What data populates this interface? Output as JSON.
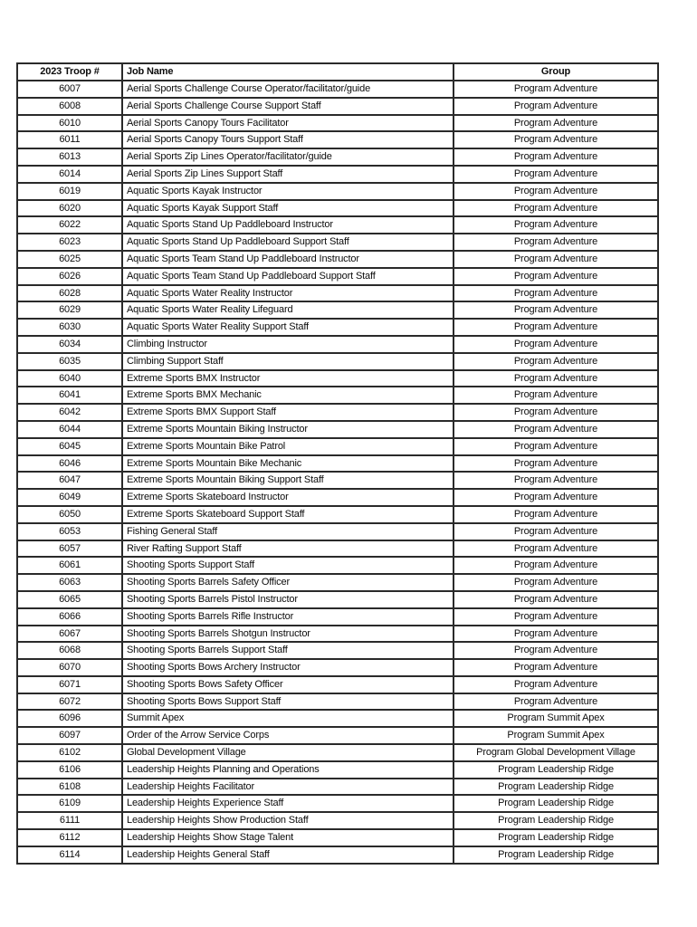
{
  "page": {
    "background_color": "#ffffff",
    "border_color": "#2a2a2a",
    "text_color": "#0c0c0c"
  },
  "table": {
    "headers": [
      "2023 Troop #",
      "Job Name",
      "Group"
    ],
    "rows": [
      {
        "troop": "6007",
        "job": "Aerial Sports Challenge Course Operator/facilitator/guide",
        "group": "Program Adventure"
      },
      {
        "troop": "6008",
        "job": "Aerial Sports Challenge Course Support Staff",
        "group": "Program Adventure"
      },
      {
        "troop": "6010",
        "job": "Aerial Sports Canopy Tours Facilitator",
        "group": "Program Adventure"
      },
      {
        "troop": "6011",
        "job": "Aerial Sports Canopy Tours Support Staff",
        "group": "Program Adventure"
      },
      {
        "troop": "6013",
        "job": "Aerial Sports Zip Lines Operator/facilitator/guide",
        "group": "Program Adventure"
      },
      {
        "troop": "6014",
        "job": "Aerial Sports Zip Lines Support Staff",
        "group": "Program Adventure"
      },
      {
        "troop": "6019",
        "job": "Aquatic Sports Kayak Instructor",
        "group": "Program Adventure"
      },
      {
        "troop": "6020",
        "job": "Aquatic Sports Kayak Support Staff",
        "group": "Program Adventure"
      },
      {
        "troop": "6022",
        "job": "Aquatic Sports Stand Up Paddleboard Instructor",
        "group": "Program Adventure"
      },
      {
        "troop": "6023",
        "job": "Aquatic Sports Stand Up Paddleboard Support Staff",
        "group": "Program Adventure"
      },
      {
        "troop": "6025",
        "job": "Aquatic Sports Team Stand Up Paddleboard Instructor",
        "group": "Program Adventure"
      },
      {
        "troop": "6026",
        "job": "Aquatic Sports Team Stand Up Paddleboard Support Staff",
        "group": "Program Adventure"
      },
      {
        "troop": "6028",
        "job": "Aquatic Sports Water Reality Instructor",
        "group": "Program Adventure"
      },
      {
        "troop": "6029",
        "job": "Aquatic Sports Water Reality Lifeguard",
        "group": "Program Adventure"
      },
      {
        "troop": "6030",
        "job": "Aquatic Sports Water Reality Support Staff",
        "group": "Program Adventure"
      },
      {
        "troop": "6034",
        "job": "Climbing Instructor",
        "group": "Program Adventure"
      },
      {
        "troop": "6035",
        "job": "Climbing Support Staff",
        "group": "Program Adventure"
      },
      {
        "troop": "6040",
        "job": "Extreme Sports BMX Instructor",
        "group": "Program Adventure"
      },
      {
        "troop": "6041",
        "job": "Extreme Sports BMX Mechanic",
        "group": "Program Adventure"
      },
      {
        "troop": "6042",
        "job": "Extreme Sports BMX Support Staff",
        "group": "Program Adventure"
      },
      {
        "troop": "6044",
        "job": "Extreme Sports Mountain Biking Instructor",
        "group": "Program Adventure"
      },
      {
        "troop": "6045",
        "job": "Extreme Sports Mountain Bike Patrol",
        "group": "Program Adventure"
      },
      {
        "troop": "6046",
        "job": "Extreme Sports Mountain Bike Mechanic",
        "group": "Program Adventure"
      },
      {
        "troop": "6047",
        "job": "Extreme Sports Mountain Biking Support Staff",
        "group": "Program Adventure"
      },
      {
        "troop": "6049",
        "job": "Extreme Sports Skateboard Instructor",
        "group": "Program Adventure"
      },
      {
        "troop": "6050",
        "job": "Extreme Sports Skateboard Support Staff",
        "group": "Program Adventure"
      },
      {
        "troop": "6053",
        "job": "Fishing General Staff",
        "group": "Program Adventure"
      },
      {
        "troop": "6057",
        "job": "River Rafting Support Staff",
        "group": "Program Adventure"
      },
      {
        "troop": "6061",
        "job": "Shooting Sports Support Staff",
        "group": "Program Adventure"
      },
      {
        "troop": "6063",
        "job": "Shooting Sports Barrels Safety Officer",
        "group": "Program Adventure"
      },
      {
        "troop": "6065",
        "job": "Shooting Sports Barrels Pistol Instructor",
        "group": "Program Adventure"
      },
      {
        "troop": "6066",
        "job": "Shooting Sports Barrels Rifle Instructor",
        "group": "Program Adventure"
      },
      {
        "troop": "6067",
        "job": "Shooting Sports Barrels Shotgun Instructor",
        "group": "Program Adventure"
      },
      {
        "troop": "6068",
        "job": "Shooting Sports Barrels Support Staff",
        "group": "Program Adventure"
      },
      {
        "troop": "6070",
        "job": "Shooting Sports Bows Archery Instructor",
        "group": "Program Adventure"
      },
      {
        "troop": "6071",
        "job": "Shooting Sports Bows Safety Officer",
        "group": "Program Adventure"
      },
      {
        "troop": "6072",
        "job": "Shooting Sports Bows Support Staff",
        "group": "Program Adventure"
      },
      {
        "troop": "6096",
        "job": "Summit Apex",
        "group": "Program Summit Apex"
      },
      {
        "troop": "6097",
        "job": "Order of the Arrow Service Corps",
        "group": "Program Summit Apex"
      },
      {
        "troop": "6102",
        "job": "Global Development Village",
        "group": "Program Global Development Village"
      },
      {
        "troop": "6106",
        "job": "Leadership Heights Planning and Operations",
        "group": "Program Leadership Ridge"
      },
      {
        "troop": "6108",
        "job": "Leadership Heights Facilitator",
        "group": "Program Leadership Ridge"
      },
      {
        "troop": "6109",
        "job": "Leadership Heights Experience Staff",
        "group": "Program Leadership Ridge"
      },
      {
        "troop": "6111",
        "job": "Leadership Heights Show Production Staff",
        "group": "Program Leadership Ridge"
      },
      {
        "troop": "6112",
        "job": "Leadership Heights Show Stage Talent",
        "group": "Program Leadership Ridge"
      },
      {
        "troop": "6114",
        "job": "Leadership Heights General Staff",
        "group": "Program Leadership Ridge"
      }
    ]
  }
}
